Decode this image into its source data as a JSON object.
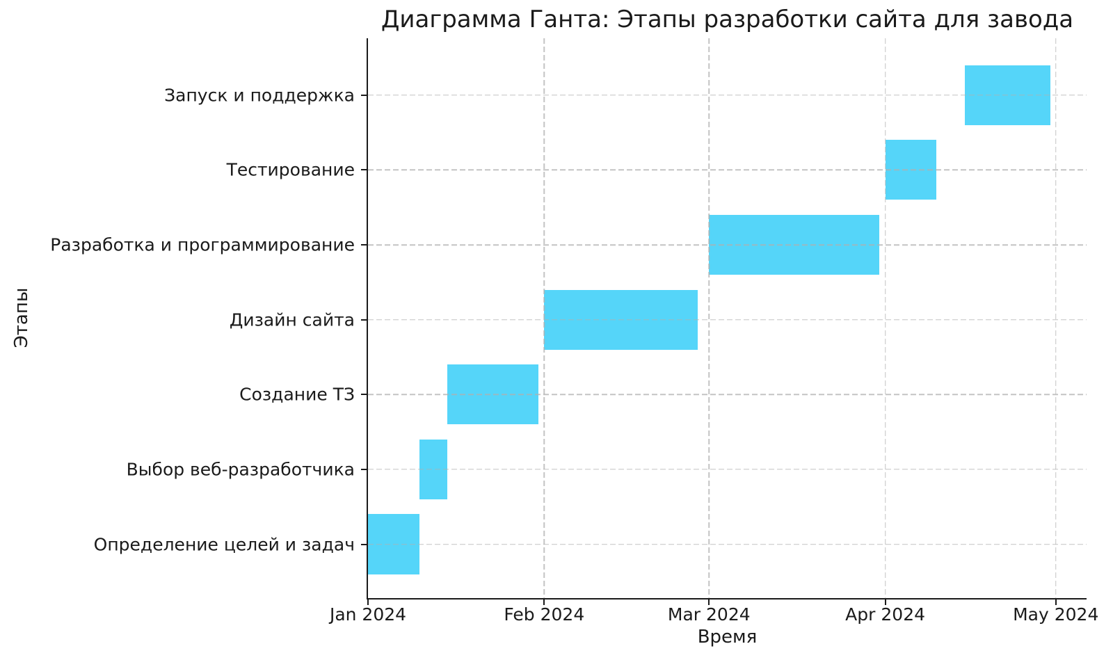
{
  "chart_data": {
    "type": "bar",
    "subtype": "gantt-horizontal",
    "title": "Диаграмма Ганта: Этапы разработки сайта для завода",
    "xlabel": "Время",
    "ylabel": "Этапы",
    "categories_top_to_bottom": [
      "Запуск и поддержка",
      "Тестирование",
      "Разработка и программирование",
      "Дизайн сайта",
      "Создание ТЗ",
      "Выбор веб-разработчика",
      "Определение целей и задач"
    ],
    "tasks": [
      {
        "label": "Запуск и поддержка",
        "start": "2024-04-15",
        "end": "2024-04-30"
      },
      {
        "label": "Тестирование",
        "start": "2024-04-01",
        "end": "2024-04-10"
      },
      {
        "label": "Разработка и программирование",
        "start": "2024-03-01",
        "end": "2024-03-31"
      },
      {
        "label": "Дизайн сайта",
        "start": "2024-02-01",
        "end": "2024-02-28"
      },
      {
        "label": "Создание ТЗ",
        "start": "2024-01-15",
        "end": "2024-01-31"
      },
      {
        "label": "Выбор веб-разработчика",
        "start": "2024-01-10",
        "end": "2024-01-15"
      },
      {
        "label": "Определение целей и задач",
        "start": "2024-01-01",
        "end": "2024-01-10"
      }
    ],
    "x_ticks": [
      {
        "label": "Jan 2024",
        "date": "2024-01-01"
      },
      {
        "label": "Feb 2024",
        "date": "2024-02-01"
      },
      {
        "label": "Mar 2024",
        "date": "2024-03-01"
      },
      {
        "label": "Apr 2024",
        "date": "2024-04-01"
      },
      {
        "label": "May 2024",
        "date": "2024-05-01"
      }
    ],
    "xlim": [
      "2024-01-01T00:00:00",
      "2024-05-06T10:00:00"
    ],
    "ylim": [
      -0.72,
      6.76
    ],
    "bar_height_units": 0.8,
    "grid": {
      "visible": true,
      "linestyle": "dashed",
      "axis": "both",
      "on_top_of_bars": true
    },
    "legend": "none",
    "colors": {
      "bar": "#55d5f9",
      "grid": "rgba(176,176,176,0.75)",
      "axis": "#1a1a1a",
      "text": "#1a1a1a",
      "background": "#ffffff"
    }
  }
}
